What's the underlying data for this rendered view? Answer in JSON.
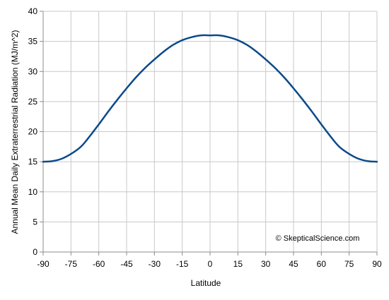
{
  "chart_data": {
    "type": "line",
    "xlabel": "Latitude",
    "ylabel": "Annual Mean Daily Extraterrestrial Radiation (MJ/m^2)",
    "xlim": [
      -90,
      90
    ],
    "ylim": [
      0,
      40
    ],
    "xticks": [
      -90,
      -75,
      -60,
      -45,
      -30,
      -15,
      0,
      15,
      30,
      45,
      60,
      75,
      90
    ],
    "yticks": [
      0,
      5,
      10,
      15,
      20,
      25,
      30,
      35,
      40
    ],
    "grid": true,
    "legend": "none",
    "annotation": "© SkepticalScience.com",
    "series": [
      {
        "color": "#0b4a8a",
        "x": [
          -90,
          -85,
          -80,
          -75,
          -70,
          -66.5,
          -60,
          -55,
          -50,
          -45,
          -40,
          -35,
          -30,
          -25,
          -20,
          -15,
          -10,
          -5,
          0,
          5,
          10,
          15,
          20,
          25,
          30,
          35,
          40,
          45,
          50,
          55,
          60,
          66.5,
          70,
          75,
          80,
          85,
          90
        ],
        "values": [
          15.0,
          15.1,
          15.5,
          16.3,
          17.4,
          18.6,
          21.2,
          23.3,
          25.3,
          27.2,
          29.0,
          30.6,
          32.0,
          33.3,
          34.4,
          35.2,
          35.7,
          36.0,
          36.0,
          36.0,
          35.7,
          35.2,
          34.4,
          33.3,
          32.0,
          30.6,
          29.0,
          27.2,
          25.3,
          23.3,
          21.2,
          18.6,
          17.4,
          16.3,
          15.5,
          15.1,
          15.0
        ]
      }
    ]
  }
}
